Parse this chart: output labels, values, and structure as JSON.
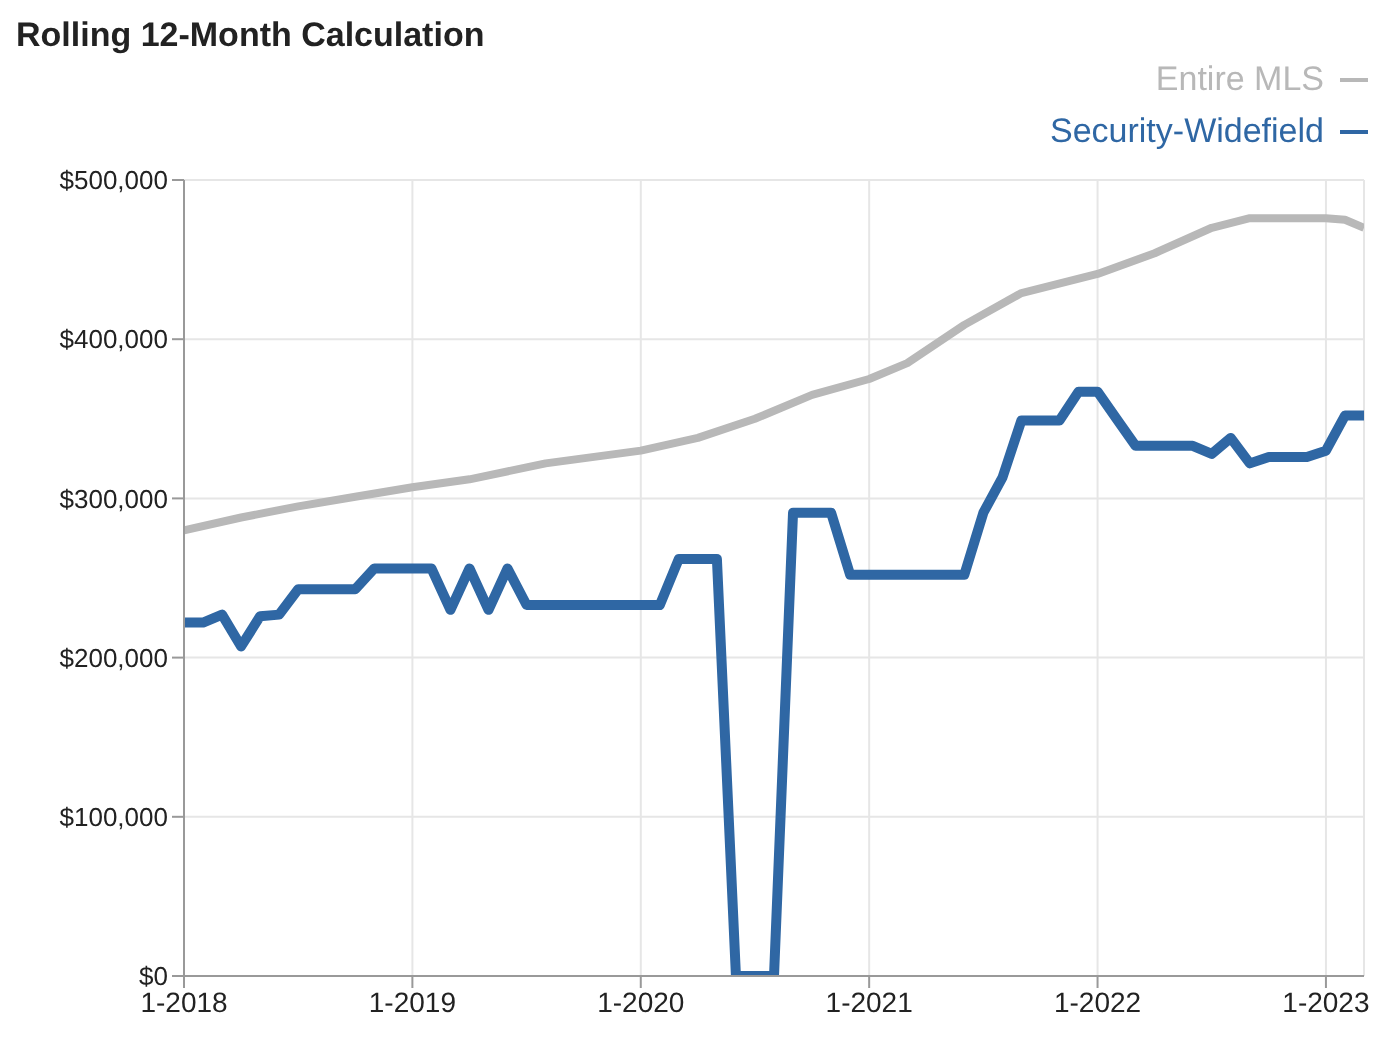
{
  "chart_data": {
    "type": "line",
    "title": "Rolling 12-Month Calculation",
    "xlim": [
      "2018-01",
      "2023-03"
    ],
    "xticks": [
      {
        "value": "2018-01",
        "label": "1-2018"
      },
      {
        "value": "2019-01",
        "label": "1-2019"
      },
      {
        "value": "2020-01",
        "label": "1-2020"
      },
      {
        "value": "2021-01",
        "label": "1-2021"
      },
      {
        "value": "2022-01",
        "label": "1-2022"
      },
      {
        "value": "2023-01",
        "label": "1-2023"
      }
    ],
    "ylim": [
      0,
      500000
    ],
    "yticks": [
      {
        "value": 0,
        "label": "$0"
      },
      {
        "value": 100000,
        "label": "$100,000"
      },
      {
        "value": 200000,
        "label": "$200,000"
      },
      {
        "value": 300000,
        "label": "$300,000"
      },
      {
        "value": 400000,
        "label": "$400,000"
      },
      {
        "value": 500000,
        "label": "$500,000"
      }
    ],
    "grid": true,
    "legend": "top right",
    "marker": "none",
    "line_style": "solid",
    "series": [
      {
        "name": "Entire MLS",
        "color": "#b8b8b8",
        "x": [
          "2018-01",
          "2018-04",
          "2018-07",
          "2018-10",
          "2019-01",
          "2019-04",
          "2019-08",
          "2020-01",
          "2020-04",
          "2020-07",
          "2020-10",
          "2021-01",
          "2021-03",
          "2021-06",
          "2021-09",
          "2022-01",
          "2022-04",
          "2022-07",
          "2022-09",
          "2023-01",
          "2023-02",
          "2023-03"
        ],
        "values": [
          280000,
          288000,
          295000,
          301000,
          307000,
          312000,
          322000,
          330000,
          338000,
          350000,
          365000,
          375000,
          385000,
          409000,
          429000,
          441000,
          454000,
          470000,
          476000,
          476000,
          475000,
          470000
        ]
      },
      {
        "name": "Security-Widefield",
        "color": "#2f67a4",
        "x": [
          "2018-01",
          "2018-02",
          "2018-03",
          "2018-04",
          "2018-05",
          "2018-06",
          "2018-07",
          "2018-08",
          "2018-09",
          "2018-10",
          "2018-11",
          "2018-12",
          "2019-01",
          "2019-02",
          "2019-03",
          "2019-04",
          "2019-05",
          "2019-06",
          "2019-07",
          "2019-08",
          "2019-09",
          "2019-10",
          "2019-11",
          "2019-12",
          "2020-01",
          "2020-02",
          "2020-03",
          "2020-04",
          "2020-05",
          "2020-06",
          "2020-07",
          "2020-08",
          "2020-09",
          "2020-10",
          "2020-11",
          "2020-12",
          "2021-01",
          "2021-02",
          "2021-03",
          "2021-04",
          "2021-05",
          "2021-06",
          "2021-07",
          "2021-08",
          "2021-09",
          "2021-10",
          "2021-11",
          "2021-12",
          "2022-01",
          "2022-02",
          "2022-03",
          "2022-04",
          "2022-05",
          "2022-06",
          "2022-07",
          "2022-08",
          "2022-09",
          "2022-10",
          "2022-11",
          "2022-12",
          "2023-01",
          "2023-02",
          "2023-03"
        ],
        "values": [
          222000,
          222000,
          227000,
          207000,
          226000,
          227000,
          243000,
          243000,
          243000,
          243000,
          256000,
          256000,
          256000,
          256000,
          230000,
          256000,
          230000,
          256000,
          233000,
          233000,
          233000,
          233000,
          233000,
          233000,
          233000,
          233000,
          262000,
          262000,
          262000,
          0,
          0,
          0,
          291000,
          291000,
          291000,
          252000,
          252000,
          252000,
          252000,
          252000,
          252000,
          252000,
          291000,
          313000,
          349000,
          349000,
          349000,
          367000,
          367000,
          350000,
          333000,
          333000,
          333000,
          333000,
          328000,
          338000,
          322000,
          326000,
          326000,
          326000,
          330000,
          352000,
          352000
        ]
      }
    ]
  }
}
